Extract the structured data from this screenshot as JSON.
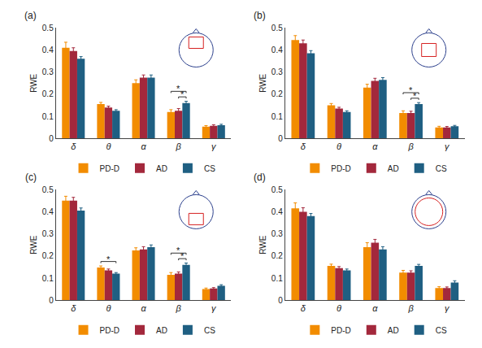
{
  "chart_data": [
    {
      "type": "bar",
      "title": "(a)",
      "y_label": "RWE",
      "categories": [
        "δ",
        "θ",
        "α",
        "β",
        "γ"
      ],
      "series": [
        {
          "name": "PD-D",
          "color": "#f28c00",
          "values": [
            0.41,
            0.155,
            0.25,
            0.12,
            0.053
          ],
          "errors": [
            0.025,
            0.008,
            0.015,
            0.01,
            0.005
          ]
        },
        {
          "name": "AD",
          "color": "#a3283c",
          "values": [
            0.395,
            0.14,
            0.275,
            0.125,
            0.057
          ],
          "errors": [
            0.015,
            0.006,
            0.012,
            0.01,
            0.005
          ]
        },
        {
          "name": "CS",
          "color": "#1f5f82",
          "values": [
            0.36,
            0.125,
            0.275,
            0.16,
            0.06
          ],
          "errors": [
            0.01,
            0.005,
            0.012,
            0.008,
            0.004
          ]
        }
      ],
      "annotations": [
        {
          "category": "β",
          "from": "AD",
          "to": "CS",
          "text": "*"
        },
        {
          "category": "β",
          "from": "PD-D",
          "to": "CS",
          "text": "*"
        }
      ],
      "ylim": [
        0,
        0.5
      ],
      "yticks": [
        0,
        0.1,
        0.2,
        0.3,
        0.4,
        0.5
      ],
      "grid": false,
      "legend": "bottom"
    },
    {
      "type": "bar",
      "title": "(b)",
      "y_label": "RWE",
      "categories": [
        "δ",
        "θ",
        "α",
        "β",
        "γ"
      ],
      "series": [
        {
          "name": "PD-D",
          "color": "#f28c00",
          "values": [
            0.445,
            0.15,
            0.23,
            0.115,
            0.05
          ],
          "errors": [
            0.02,
            0.008,
            0.015,
            0.01,
            0.005
          ]
        },
        {
          "name": "AD",
          "color": "#a3283c",
          "values": [
            0.43,
            0.135,
            0.26,
            0.115,
            0.05
          ],
          "errors": [
            0.015,
            0.006,
            0.012,
            0.008,
            0.004
          ]
        },
        {
          "name": "CS",
          "color": "#1f5f82",
          "values": [
            0.385,
            0.12,
            0.265,
            0.155,
            0.055
          ],
          "errors": [
            0.012,
            0.005,
            0.01,
            0.007,
            0.004
          ]
        }
      ],
      "annotations": [
        {
          "category": "β",
          "from": "AD",
          "to": "CS",
          "text": "*"
        },
        {
          "category": "β",
          "from": "PD-D",
          "to": "CS",
          "text": "*"
        }
      ],
      "ylim": [
        0,
        0.5
      ],
      "yticks": [
        0,
        0.1,
        0.2,
        0.3,
        0.4,
        0.5
      ],
      "grid": false,
      "legend": "bottom"
    },
    {
      "type": "bar",
      "title": "(c)",
      "y_label": "RWE",
      "categories": [
        "δ",
        "θ",
        "α",
        "β",
        "γ"
      ],
      "series": [
        {
          "name": "PD-D",
          "color": "#f28c00",
          "values": [
            0.45,
            0.148,
            0.225,
            0.115,
            0.05
          ],
          "errors": [
            0.02,
            0.007,
            0.012,
            0.01,
            0.005
          ]
        },
        {
          "name": "AD",
          "color": "#a3283c",
          "values": [
            0.45,
            0.135,
            0.23,
            0.12,
            0.053
          ],
          "errors": [
            0.015,
            0.006,
            0.012,
            0.008,
            0.004
          ]
        },
        {
          "name": "CS",
          "color": "#1f5f82",
          "values": [
            0.405,
            0.12,
            0.24,
            0.16,
            0.065
          ],
          "errors": [
            0.012,
            0.005,
            0.01,
            0.008,
            0.005
          ]
        }
      ],
      "annotations": [
        {
          "category": "θ",
          "from": "PD-D",
          "to": "CS",
          "text": "*"
        },
        {
          "category": "β",
          "from": "AD",
          "to": "CS",
          "text": "*"
        },
        {
          "category": "β",
          "from": "PD-D",
          "to": "CS",
          "text": "*"
        }
      ],
      "ylim": [
        0,
        0.5
      ],
      "yticks": [
        0,
        0.1,
        0.2,
        0.3,
        0.4,
        0.5
      ],
      "grid": false,
      "legend": "bottom"
    },
    {
      "type": "bar",
      "title": "(d)",
      "y_label": "RWE",
      "categories": [
        "δ",
        "θ",
        "α",
        "β",
        "γ"
      ],
      "series": [
        {
          "name": "PD-D",
          "color": "#f28c00",
          "values": [
            0.415,
            0.155,
            0.24,
            0.125,
            0.055
          ],
          "errors": [
            0.025,
            0.008,
            0.02,
            0.01,
            0.006
          ]
        },
        {
          "name": "AD",
          "color": "#a3283c",
          "values": [
            0.4,
            0.145,
            0.26,
            0.125,
            0.055
          ],
          "errors": [
            0.018,
            0.007,
            0.015,
            0.008,
            0.005
          ]
        },
        {
          "name": "CS",
          "color": "#1f5f82",
          "values": [
            0.38,
            0.135,
            0.23,
            0.155,
            0.08
          ],
          "errors": [
            0.012,
            0.006,
            0.012,
            0.007,
            0.008
          ]
        }
      ],
      "annotations": [],
      "ylim": [
        0,
        0.5
      ],
      "yticks": [
        0,
        0.1,
        0.2,
        0.3,
        0.4,
        0.5
      ],
      "grid": false,
      "legend": "bottom"
    }
  ]
}
